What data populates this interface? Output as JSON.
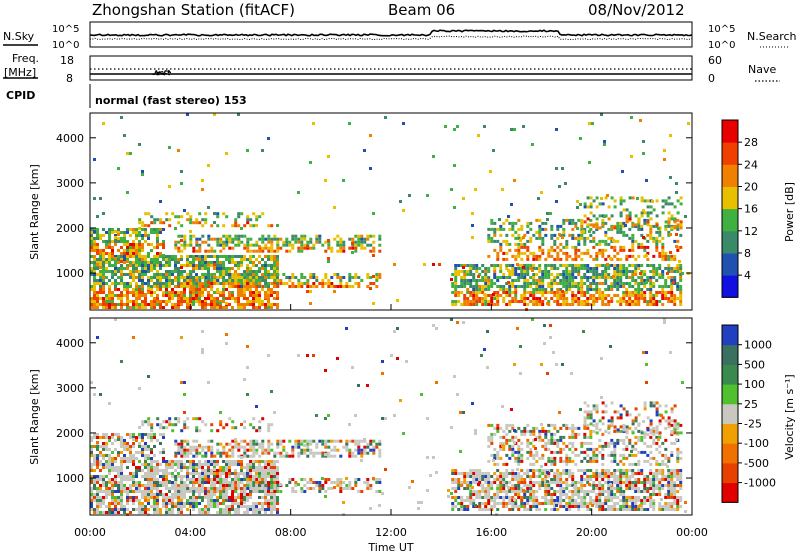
{
  "header": {
    "station": "Zhongshan Station (fitACF)",
    "beam": "Beam 06",
    "date": "08/Nov/2012",
    "cpid_text": "normal (fast stereo) 153"
  },
  "strip": {
    "nsky_label": "N.Sky",
    "nsearch_label": "N.Search",
    "noise_ticks": [
      "10^5",
      "10^0"
    ],
    "freq_label_top": "Freq.",
    "freq_label_bottom": "[MHz]",
    "freq_ticks": [
      "18",
      "8"
    ],
    "nave_label": "Nave",
    "nave_ticks": [
      "60",
      "0"
    ],
    "cpid_label": "CPID"
  },
  "chart_data": [
    {
      "type": "heatmap",
      "name": "power",
      "ylabel": "Slant Range [km]",
      "ylim": [
        180,
        4550
      ],
      "yticks": [
        1000,
        2000,
        3000,
        4000
      ],
      "colorbar": {
        "label": "Power [dB]",
        "ticks": [
          "4",
          "8",
          "12",
          "16",
          "20",
          "24",
          "28"
        ],
        "colors": [
          "#1010e0",
          "#2050b0",
          "#3a8a6a",
          "#40b040",
          "#e8c000",
          "#f08000",
          "#f04000",
          "#e80000"
        ]
      }
    },
    {
      "type": "heatmap",
      "name": "velocity",
      "ylabel": "Slant Range [km]",
      "ylim": [
        180,
        4550
      ],
      "yticks": [
        1000,
        2000,
        3000,
        4000
      ],
      "colorbar": {
        "label": "Velocity [m s⁻¹]",
        "ticks": [
          "1000",
          "500",
          "100",
          "25",
          "-25",
          "-100",
          "-500",
          "-1000"
        ],
        "colors": [
          "#2040c0",
          "#3a7060",
          "#3a8a50",
          "#50c030",
          "#c8c8c0",
          "#f0a000",
          "#f07000",
          "#e84000",
          "#e00000"
        ]
      }
    }
  ],
  "xaxis": {
    "label": "Time UT",
    "ticks": [
      "00:00",
      "04:00",
      "08:00",
      "12:00",
      "16:00",
      "20:00",
      "00:00"
    ]
  }
}
